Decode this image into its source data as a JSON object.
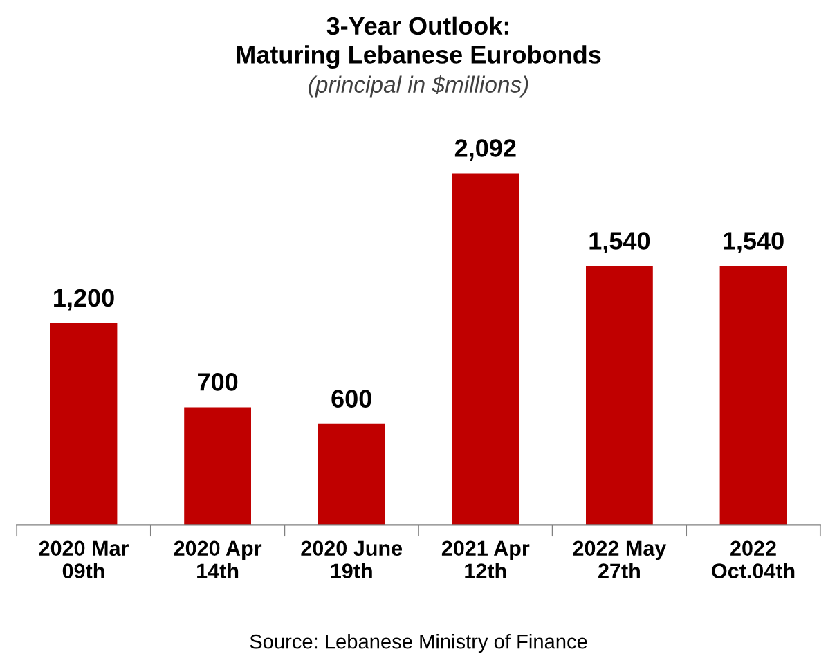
{
  "chart_data": {
    "type": "bar",
    "title": "3-Year Outlook:\nMaturing Lebanese Eurobonds",
    "subtitle": "(principal in $millions)",
    "categories": [
      "2020 Mar\n09th",
      "2020 Apr\n14th",
      "2020 June\n19th",
      "2021 Apr\n12th",
      "2022 May\n27th",
      "2022\nOct.04th"
    ],
    "values": [
      1200,
      700,
      600,
      2092,
      1540,
      1540
    ],
    "color": "#c00000",
    "data_labels": true,
    "value_labels": [
      "1,200",
      "700",
      "600",
      "2,092",
      "1,540",
      "1,540"
    ],
    "grid": false,
    "legend": false,
    "annotations": [
      "Source: Lebanese Ministry of Finance"
    ]
  }
}
